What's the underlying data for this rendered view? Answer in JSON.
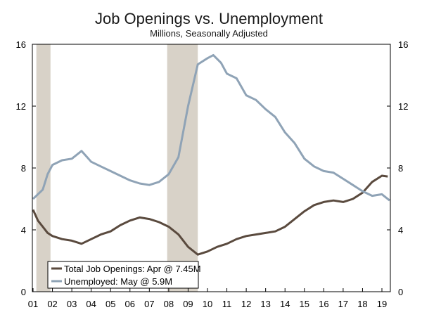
{
  "chart_data": {
    "type": "line",
    "title": "Job Openings vs. Unemployment",
    "subtitle": "Millions, Seasonally Adjusted",
    "x_ticks": [
      "01",
      "02",
      "03",
      "04",
      "05",
      "06",
      "07",
      "08",
      "09",
      "10",
      "11",
      "12",
      "13",
      "14",
      "15",
      "16",
      "17",
      "18",
      "19"
    ],
    "y_ticks": [
      "0",
      "4",
      "8",
      "12",
      "16"
    ],
    "ylim": [
      0,
      16
    ],
    "xlim": [
      2001.0,
      2019.6
    ],
    "recessions": [
      [
        2001.17,
        2001.9
      ],
      [
        2007.92,
        2009.5
      ]
    ],
    "legend": {
      "placement": "bottom-left"
    },
    "colors": {
      "openings": "#5a4a3e",
      "unemployed": "#8fa3b6",
      "recession": "#d8d2c8"
    },
    "series": [
      {
        "name": "Total Job Openings: Apr @ 7.45M",
        "color": "#5a4a3e",
        "x": [
          2001.0,
          2001.25,
          2001.5,
          2001.75,
          2002.0,
          2002.5,
          2003.0,
          2003.5,
          2004.0,
          2004.5,
          2005.0,
          2005.5,
          2006.0,
          2006.5,
          2007.0,
          2007.5,
          2008.0,
          2008.5,
          2009.0,
          2009.5,
          2010.0,
          2010.5,
          2011.0,
          2011.5,
          2012.0,
          2012.5,
          2013.0,
          2013.5,
          2014.0,
          2014.5,
          2015.0,
          2015.5,
          2016.0,
          2016.5,
          2017.0,
          2017.5,
          2018.0,
          2018.5,
          2019.0,
          2019.3
        ],
        "values": [
          5.3,
          4.6,
          4.2,
          3.8,
          3.6,
          3.4,
          3.3,
          3.1,
          3.4,
          3.7,
          3.9,
          4.3,
          4.6,
          4.8,
          4.7,
          4.5,
          4.2,
          3.7,
          2.9,
          2.4,
          2.6,
          2.9,
          3.1,
          3.4,
          3.6,
          3.7,
          3.8,
          3.9,
          4.2,
          4.7,
          5.2,
          5.6,
          5.8,
          5.9,
          5.8,
          6.0,
          6.4,
          7.1,
          7.5,
          7.45
        ]
      },
      {
        "name": "Unemployed: May @ 5.9M",
        "color": "#8fa3b6",
        "x": [
          2001.0,
          2001.5,
          2001.75,
          2002.0,
          2002.5,
          2003.0,
          2003.5,
          2004.0,
          2004.5,
          2005.0,
          2005.5,
          2006.0,
          2006.5,
          2007.0,
          2007.5,
          2008.0,
          2008.5,
          2009.0,
          2009.5,
          2010.0,
          2010.3,
          2010.7,
          2011.0,
          2011.5,
          2012.0,
          2012.5,
          2013.0,
          2013.5,
          2014.0,
          2014.5,
          2015.0,
          2015.5,
          2016.0,
          2016.5,
          2017.0,
          2017.5,
          2018.0,
          2018.5,
          2019.0,
          2019.4
        ],
        "values": [
          6.0,
          6.6,
          7.6,
          8.2,
          8.5,
          8.6,
          9.1,
          8.4,
          8.1,
          7.8,
          7.5,
          7.2,
          7.0,
          6.9,
          7.1,
          7.6,
          8.7,
          12.0,
          14.7,
          15.1,
          15.3,
          14.8,
          14.1,
          13.8,
          12.7,
          12.4,
          11.8,
          11.3,
          10.3,
          9.6,
          8.6,
          8.1,
          7.8,
          7.7,
          7.3,
          6.9,
          6.5,
          6.2,
          6.3,
          5.9
        ]
      }
    ]
  }
}
